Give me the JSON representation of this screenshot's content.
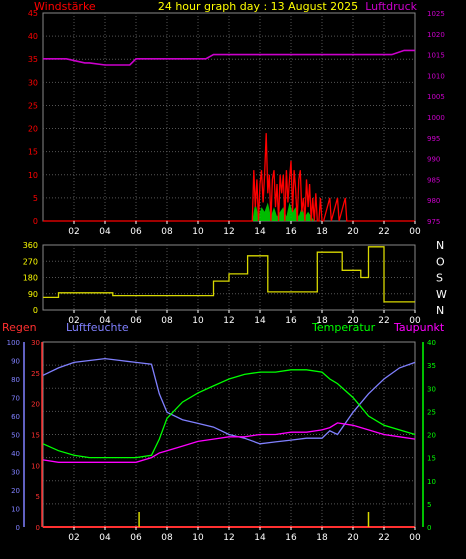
{
  "header": {
    "left_label": "Windstärke",
    "title": "24 hour graph day : 13 August 2025",
    "right_label": "Luftdruck"
  },
  "colors": {
    "wind": "#ff0000",
    "gust_fill": "#00dd00",
    "pressure": "#cc00cc",
    "direction": "#d8d800",
    "humidity": "#8080ff",
    "temperature": "#00ff00",
    "dewpoint": "#ff00ff",
    "rain": "#ff3030",
    "rain_rate": "#d8d800",
    "grid": "#555555",
    "frame": "#888888"
  },
  "chart_data": [
    {
      "type": "line",
      "name": "wind-pressure",
      "x_ticks": [
        "02",
        "04",
        "06",
        "08",
        "10",
        "12",
        "14",
        "16",
        "18",
        "20",
        "22",
        "00"
      ],
      "left_axis": {
        "label": "Windstärke",
        "ticks": [
          "0",
          "5",
          "10",
          "15",
          "20",
          "25",
          "30",
          "35",
          "40",
          "45"
        ],
        "ylim": [
          0,
          45
        ]
      },
      "right_axis": {
        "label": "Luftdruck",
        "ticks": [
          "975",
          "980",
          "985",
          "990",
          "995",
          "1000",
          "1005",
          "1010",
          "1015",
          "1020",
          "1025"
        ],
        "ylim": [
          975,
          1025
        ]
      },
      "series": [
        {
          "name": "Luftdruck",
          "axis": "right",
          "x": [
            0,
            1.5,
            2.7,
            3.0,
            4.0,
            5.6,
            6.0,
            10.5,
            11.0,
            14.8,
            22.5,
            23.3,
            24
          ],
          "values": [
            1014,
            1014,
            1013,
            1013,
            1012.5,
            1012.5,
            1014,
            1014,
            1015,
            1015,
            1015,
            1016,
            1016
          ]
        },
        {
          "name": "Wind",
          "axis": "left",
          "x": [
            0,
            13.5,
            13.6,
            13.7,
            13.8,
            13.9,
            14.0,
            14.1,
            14.2,
            14.3,
            14.4,
            14.5,
            14.6,
            14.7,
            14.8,
            14.9,
            15.0,
            15.1,
            15.2,
            15.3,
            15.4,
            15.5,
            15.6,
            15.7,
            15.8,
            15.9,
            16.0,
            16.1,
            16.2,
            16.3,
            16.4,
            16.5,
            16.6,
            16.7,
            16.8,
            16.9,
            17.0,
            17.1,
            17.2,
            17.3,
            17.4,
            17.5,
            17.6,
            17.7,
            17.8,
            17.9,
            18.0,
            18.1,
            18.5,
            18.6,
            19.0,
            19.1,
            19.5,
            19.6,
            20.0,
            24
          ],
          "values": [
            0,
            0,
            11,
            3,
            9,
            0,
            8,
            11,
            4,
            10,
            19,
            6,
            10,
            0,
            9,
            11,
            3,
            8,
            0,
            10,
            6,
            10,
            0,
            11,
            4,
            9,
            13,
            2,
            11,
            7,
            0,
            9,
            11,
            2,
            5,
            0,
            9,
            3,
            8,
            0,
            5,
            0,
            6,
            0,
            0,
            5,
            0,
            0,
            5,
            0,
            5,
            0,
            5,
            0,
            0,
            0
          ]
        },
        {
          "name": "Böen",
          "axis": "left",
          "x": [
            0,
            13.5,
            13.7,
            13.9,
            14.1,
            14.3,
            14.5,
            14.7,
            14.9,
            15.1,
            15.3,
            15.5,
            15.7,
            15.9,
            16.1,
            16.3,
            16.5,
            16.7,
            16.9,
            17.1,
            17.3,
            17.5,
            18.0,
            24
          ],
          "values": [
            0,
            0,
            4,
            1,
            3,
            2,
            4,
            1,
            3,
            1,
            2,
            3,
            1,
            4,
            2,
            3,
            1,
            3,
            1,
            2,
            1,
            0,
            0,
            0
          ]
        }
      ]
    },
    {
      "type": "line",
      "name": "wind-direction",
      "x_ticks": [
        "02",
        "04",
        "06",
        "08",
        "10",
        "12",
        "14",
        "16",
        "18",
        "20",
        "22",
        "00"
      ],
      "left_axis": {
        "ticks": [
          "0",
          "90",
          "180",
          "270",
          "360"
        ],
        "ylim": [
          0,
          360
        ]
      },
      "right_axis": {
        "ticks": [
          "N",
          "W",
          "S",
          "O",
          "N"
        ]
      },
      "series": [
        {
          "name": "Windrichtung",
          "x": [
            0,
            1.0,
            1.0,
            4.5,
            4.5,
            11.0,
            11.0,
            12.0,
            12.0,
            13.2,
            13.2,
            14.5,
            14.5,
            17.7,
            17.7,
            19.3,
            19.3,
            20.5,
            20.5,
            21.0,
            21.0,
            22.0,
            22.0,
            24
          ],
          "values": [
            70,
            70,
            95,
            95,
            80,
            80,
            160,
            160,
            200,
            200,
            300,
            300,
            100,
            100,
            320,
            320,
            220,
            220,
            180,
            180,
            350,
            350,
            45,
            45
          ]
        }
      ]
    },
    {
      "type": "line",
      "name": "temperature-humidity",
      "x_ticks": [
        "02",
        "04",
        "06",
        "08",
        "10",
        "12",
        "14",
        "16",
        "18",
        "20",
        "22",
        "00"
      ],
      "left_axis_1": {
        "label": "Regen",
        "ticks": [
          "0",
          "10",
          "20",
          "30",
          "40",
          "50",
          "60",
          "70",
          "80",
          "90",
          "100"
        ],
        "ylim": [
          0,
          100
        ]
      },
      "left_axis_2": {
        "label": "Luftfeuchte",
        "ticks": [
          "0",
          "5",
          "10",
          "15",
          "20",
          "25",
          "30"
        ],
        "ylim": [
          0,
          30
        ]
      },
      "right_axis": {
        "label": "Temperatur",
        "label2": "Taupunkt",
        "ticks": [
          "0",
          "5",
          "10",
          "15",
          "20",
          "25",
          "30",
          "35",
          "40"
        ],
        "ylim": [
          0,
          40
        ]
      },
      "series": [
        {
          "name": "Luftfeuchte",
          "axis": "left1",
          "x": [
            0,
            1,
            2,
            3,
            4,
            5,
            6,
            7,
            7.5,
            8,
            9,
            10,
            11,
            12,
            13,
            14,
            15,
            16,
            17,
            18,
            18.5,
            19,
            20,
            21,
            22,
            23,
            24
          ],
          "values": [
            82,
            86,
            89,
            90,
            91,
            90,
            89,
            88,
            72,
            62,
            58,
            56,
            54,
            50,
            48,
            45,
            46,
            47,
            48,
            48,
            52,
            50,
            62,
            72,
            80,
            86,
            89
          ]
        },
        {
          "name": "Temperatur",
          "axis": "right",
          "x": [
            0,
            1,
            2,
            3,
            4,
            5,
            6,
            7,
            7.5,
            8,
            9,
            10,
            11,
            12,
            13,
            14,
            15,
            16,
            17,
            18,
            18.5,
            19,
            20,
            21,
            22,
            23,
            24
          ],
          "values": [
            18,
            16.5,
            15.5,
            15,
            15,
            15,
            15,
            15.5,
            19,
            23.5,
            27,
            29,
            30.5,
            32,
            33,
            33.5,
            33.5,
            34,
            34,
            33.5,
            32,
            31,
            28,
            24,
            22,
            21,
            20
          ]
        },
        {
          "name": "Taupunkt",
          "axis": "right",
          "x": [
            0,
            1,
            2,
            3,
            4,
            5,
            6,
            7,
            7.5,
            8,
            9,
            10,
            11,
            12,
            13,
            14,
            15,
            16,
            17,
            18,
            18.5,
            19,
            20,
            21,
            22,
            23,
            24
          ],
          "values": [
            14.5,
            14,
            14,
            14,
            14,
            14,
            14,
            15,
            16,
            16.5,
            17.5,
            18.5,
            19,
            19.5,
            19.5,
            20,
            20,
            20.5,
            20.5,
            21,
            21.5,
            22.5,
            22,
            21,
            20,
            19.5,
            19
          ]
        },
        {
          "name": "Regen",
          "axis": "left1",
          "x": [
            0,
            24
          ],
          "values": [
            0,
            0
          ]
        }
      ],
      "markers": [
        6.2,
        21.0
      ]
    }
  ],
  "panel3_labels": {
    "regen": "Regen",
    "luftfeuchte": "Luftfeuchte",
    "temperatur": "Temperatur",
    "taupunkt": "Taupunkt"
  }
}
